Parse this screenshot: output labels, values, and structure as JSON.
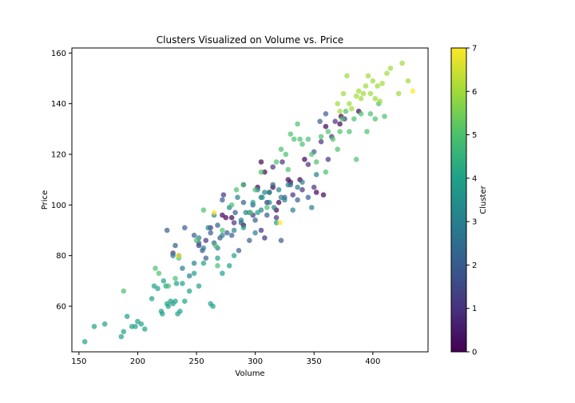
{
  "chart_data": {
    "type": "scatter",
    "title": "Clusters Visualized on Volume vs. Price",
    "xlabel": "Volume",
    "ylabel": "Price",
    "xlim": [
      144,
      447
    ],
    "ylim": [
      42,
      162
    ],
    "xticks": [
      150,
      200,
      250,
      300,
      350,
      400
    ],
    "yticks": [
      60,
      80,
      100,
      120,
      140,
      160
    ],
    "grid": false,
    "marker_alpha": 0.7,
    "colorbar": {
      "label": "Cluster",
      "range": [
        0,
        7
      ],
      "ticks": [
        0,
        1,
        2,
        3,
        4,
        5,
        6,
        7
      ],
      "colormap": "viridis",
      "stops": [
        "#440154",
        "#46327e",
        "#365c8d",
        "#277f8e",
        "#1fa187",
        "#4ac16d",
        "#a0da39",
        "#fde725"
      ]
    },
    "clusters": [
      {
        "cluster": 0,
        "x": [
          272,
          275,
          280,
          290,
          302,
          305,
          308,
          312,
          315,
          318,
          320,
          328,
          330,
          338,
          342,
          352,
          358,
          360,
          372,
          373,
          388
        ],
        "y": [
          96,
          95,
          95,
          92,
          107,
          117,
          113,
          105,
          107,
          98,
          101,
          110,
          109,
          110,
          118,
          105,
          104,
          131,
          132,
          135,
          137
        ]
      },
      {
        "cluster": 1,
        "x": [
          230,
          252,
          258,
          262,
          273,
          282,
          290,
          298,
          305,
          308,
          310,
          315,
          318,
          323,
          332,
          340,
          345,
          350,
          356,
          362,
          365,
          368,
          376
        ],
        "y": [
          81,
          84,
          86,
          91,
          104,
          93,
          108,
          96,
          90,
          87,
          101,
          115,
          95,
          117,
          104,
          106,
          116,
          107,
          125,
          118,
          127,
          133,
          134
        ]
      },
      {
        "cluster": 2,
        "x": [
          225,
          232,
          235,
          240,
          248,
          252,
          255,
          258,
          262,
          265,
          268,
          270,
          272,
          276,
          280,
          283,
          286,
          288,
          290,
          295,
          298,
          300,
          305,
          310,
          315,
          322,
          325,
          330,
          336,
          345,
          350,
          355,
          360
        ],
        "y": [
          90,
          84,
          80,
          91,
          88,
          85,
          82,
          79,
          89,
          85,
          92,
          87,
          102,
          89,
          88,
          97,
          82,
          93,
          101,
          86,
          100,
          94,
          103,
          96,
          108,
          86,
          103,
          108,
          102,
          103,
          121,
          133,
          136
        ]
      },
      {
        "cluster": 3,
        "x": [
          230,
          238,
          244,
          248,
          252,
          256,
          260,
          265,
          268,
          272,
          278,
          282,
          285,
          288,
          292,
          295,
          300,
          302,
          305,
          308,
          312,
          316,
          320,
          322,
          325,
          328,
          332,
          336,
          340,
          348,
          352
        ],
        "y": [
          80,
          75,
          72,
          77,
          87,
          83,
          91,
          96,
          83,
          88,
          99,
          90,
          103,
          94,
          97,
          97,
          89,
          106,
          98,
          105,
          101,
          99,
          106,
          103,
          102,
          108,
          98,
          107,
          109,
          99,
          112
        ]
      },
      {
        "cluster": 4,
        "x": [
          155,
          163,
          172,
          186,
          188,
          191,
          195,
          198,
          200,
          203,
          206,
          212,
          214,
          217,
          220,
          221,
          222,
          224,
          225,
          226,
          228,
          230,
          232,
          233,
          234,
          236,
          238,
          240,
          244,
          248,
          252,
          256,
          262,
          264,
          268,
          272,
          278,
          282,
          290,
          298,
          302,
          306,
          312,
          318
        ],
        "y": [
          46,
          52,
          53,
          48,
          50,
          56,
          52,
          52,
          54,
          53,
          51,
          63,
          68,
          67,
          58,
          57,
          70,
          68,
          61,
          60,
          62,
          61,
          62,
          69,
          57,
          58,
          69,
          62,
          66,
          73,
          68,
          77,
          61,
          60,
          79,
          73,
          76,
          80,
          91,
          101,
          97,
          103,
          105,
          93
        ]
      },
      {
        "cluster": 5,
        "x": [
          188,
          215,
          218,
          226,
          232,
          235,
          250,
          256,
          266,
          268,
          272,
          280,
          284,
          290,
          296,
          300,
          305,
          310,
          318,
          322,
          326,
          328,
          330,
          333,
          336,
          338,
          340,
          345,
          348,
          352,
          356,
          360,
          362,
          366,
          370,
          372,
          374,
          377,
          380,
          384,
          386,
          390,
          395,
          398,
          402,
          405,
          410
        ],
        "y": [
          66,
          75,
          73,
          68,
          71,
          79,
          86,
          98,
          84,
          76,
          90,
          100,
          106,
          108,
          97,
          106,
          113,
          99,
          117,
          122,
          120,
          114,
          128,
          126,
          132,
          126,
          124,
          126,
          120,
          117,
          127,
          113,
          129,
          126,
          122,
          129,
          134,
          137,
          129,
          134,
          118,
          136,
          129,
          136,
          134,
          140,
          135
        ]
      },
      {
        "cluster": 6,
        "x": [
          370,
          372,
          375,
          378,
          380,
          382,
          386,
          388,
          390,
          392,
          394,
          396,
          398,
          400,
          402,
          404,
          406,
          408,
          412,
          415,
          422,
          425,
          430
        ],
        "y": [
          140,
          137,
          144,
          151,
          140,
          138,
          143,
          145,
          142,
          144,
          147,
          151,
          144,
          149,
          142,
          147,
          141,
          148,
          152,
          154,
          144,
          156,
          149
        ]
      },
      {
        "cluster": 7,
        "x": [
          235,
          265,
          321,
          434
        ],
        "y": [
          80,
          97,
          93,
          145
        ]
      }
    ]
  }
}
